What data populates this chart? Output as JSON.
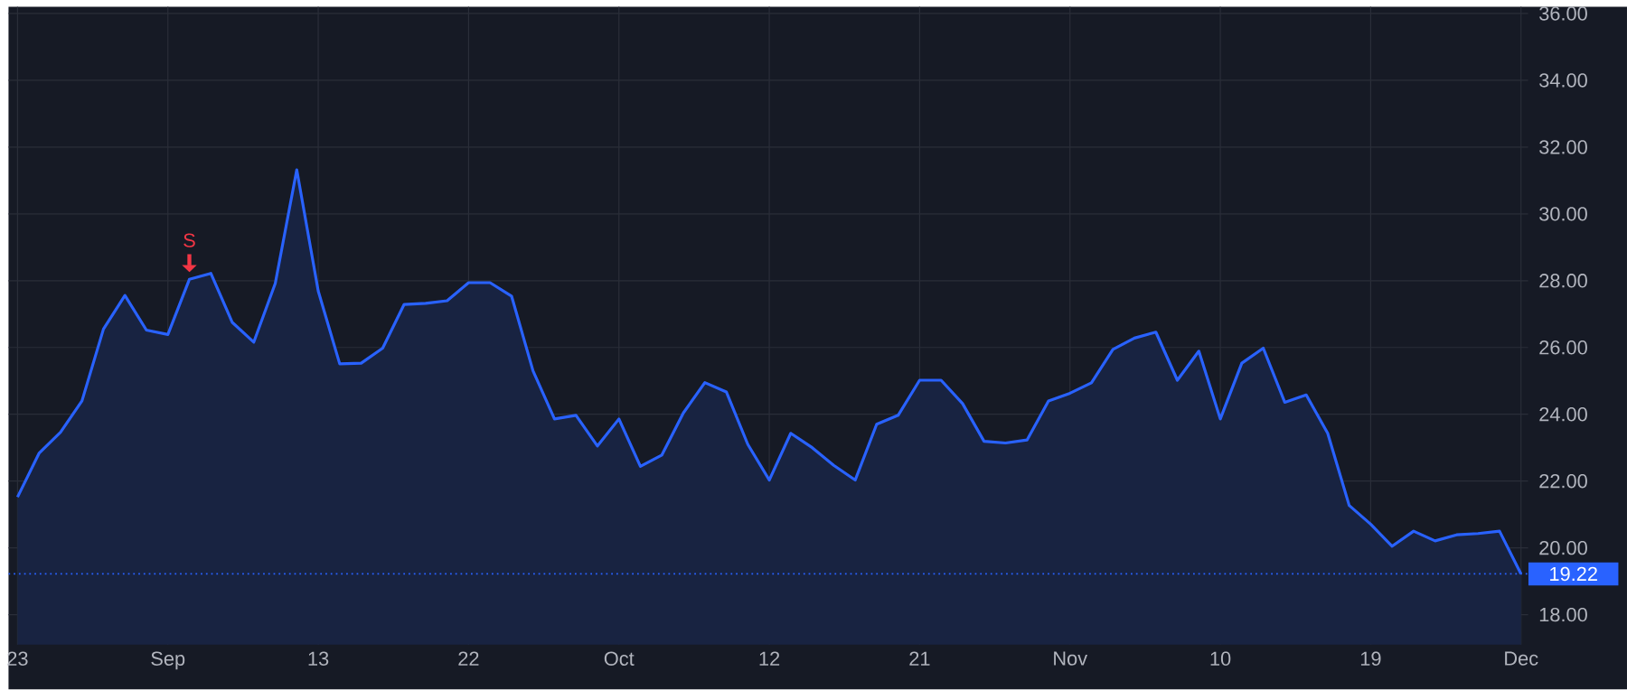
{
  "chart_data": {
    "type": "area",
    "color": "#2962ff",
    "categories": [
      "23",
      null,
      null,
      null,
      null,
      null,
      null,
      "Sep",
      null,
      null,
      null,
      null,
      null,
      null,
      "13",
      null,
      null,
      null,
      null,
      null,
      null,
      "22",
      null,
      null,
      null,
      null,
      null,
      null,
      "Oct",
      null,
      null,
      null,
      null,
      null,
      null,
      "12",
      null,
      null,
      null,
      null,
      null,
      null,
      "21",
      null,
      null,
      null,
      null,
      null,
      null,
      "Nov",
      null,
      null,
      null,
      null,
      null,
      null,
      "10",
      null,
      null,
      null,
      null,
      null,
      null,
      "19",
      null,
      null,
      null,
      null,
      null,
      null,
      "Dec"
    ],
    "values": [
      21.52,
      22.83,
      23.46,
      24.4,
      26.55,
      27.56,
      26.52,
      26.39,
      28.04,
      28.22,
      26.75,
      26.16,
      27.92,
      31.32,
      27.69,
      25.51,
      25.53,
      25.98,
      27.29,
      27.32,
      27.4,
      27.94,
      27.94,
      27.54,
      25.3,
      23.86,
      23.97,
      23.05,
      23.86,
      22.44,
      22.78,
      24.04,
      24.95,
      24.67,
      23.1,
      22.03,
      23.43,
      23.0,
      22.47,
      22.03,
      23.7,
      23.97,
      25.02,
      25.02,
      24.32,
      23.19,
      23.14,
      23.23,
      24.4,
      24.63,
      24.94,
      25.94,
      26.28,
      26.46,
      25.02,
      25.89,
      23.86,
      25.53,
      25.98,
      24.36,
      24.58,
      23.43,
      21.27,
      20.71,
      20.05,
      20.5,
      20.21,
      20.39,
      20.43,
      20.5,
      19.22
    ],
    "ylim": [
      17.1,
      36.2
    ],
    "yticks": [
      {
        "value": 18,
        "label": "18.00"
      },
      {
        "value": 20,
        "label": "20.00"
      },
      {
        "value": 22,
        "label": "22.00"
      },
      {
        "value": 24,
        "label": "24.00"
      },
      {
        "value": 26,
        "label": "26.00"
      },
      {
        "value": 28,
        "label": "28.00"
      },
      {
        "value": 30,
        "label": "30.00"
      },
      {
        "value": 32,
        "label": "32.00"
      },
      {
        "value": 34,
        "label": "34.00"
      },
      {
        "value": 36,
        "label": "36.00"
      }
    ],
    "grid": true,
    "marker": "none",
    "line_style": "solid",
    "ref_lines": [
      {
        "axis": "y",
        "value": 19.22,
        "label": "19.22",
        "color": "#2962ff",
        "line_style": "dotted"
      }
    ],
    "annotations": [
      {
        "text": "S",
        "y": 28.04
      }
    ]
  }
}
